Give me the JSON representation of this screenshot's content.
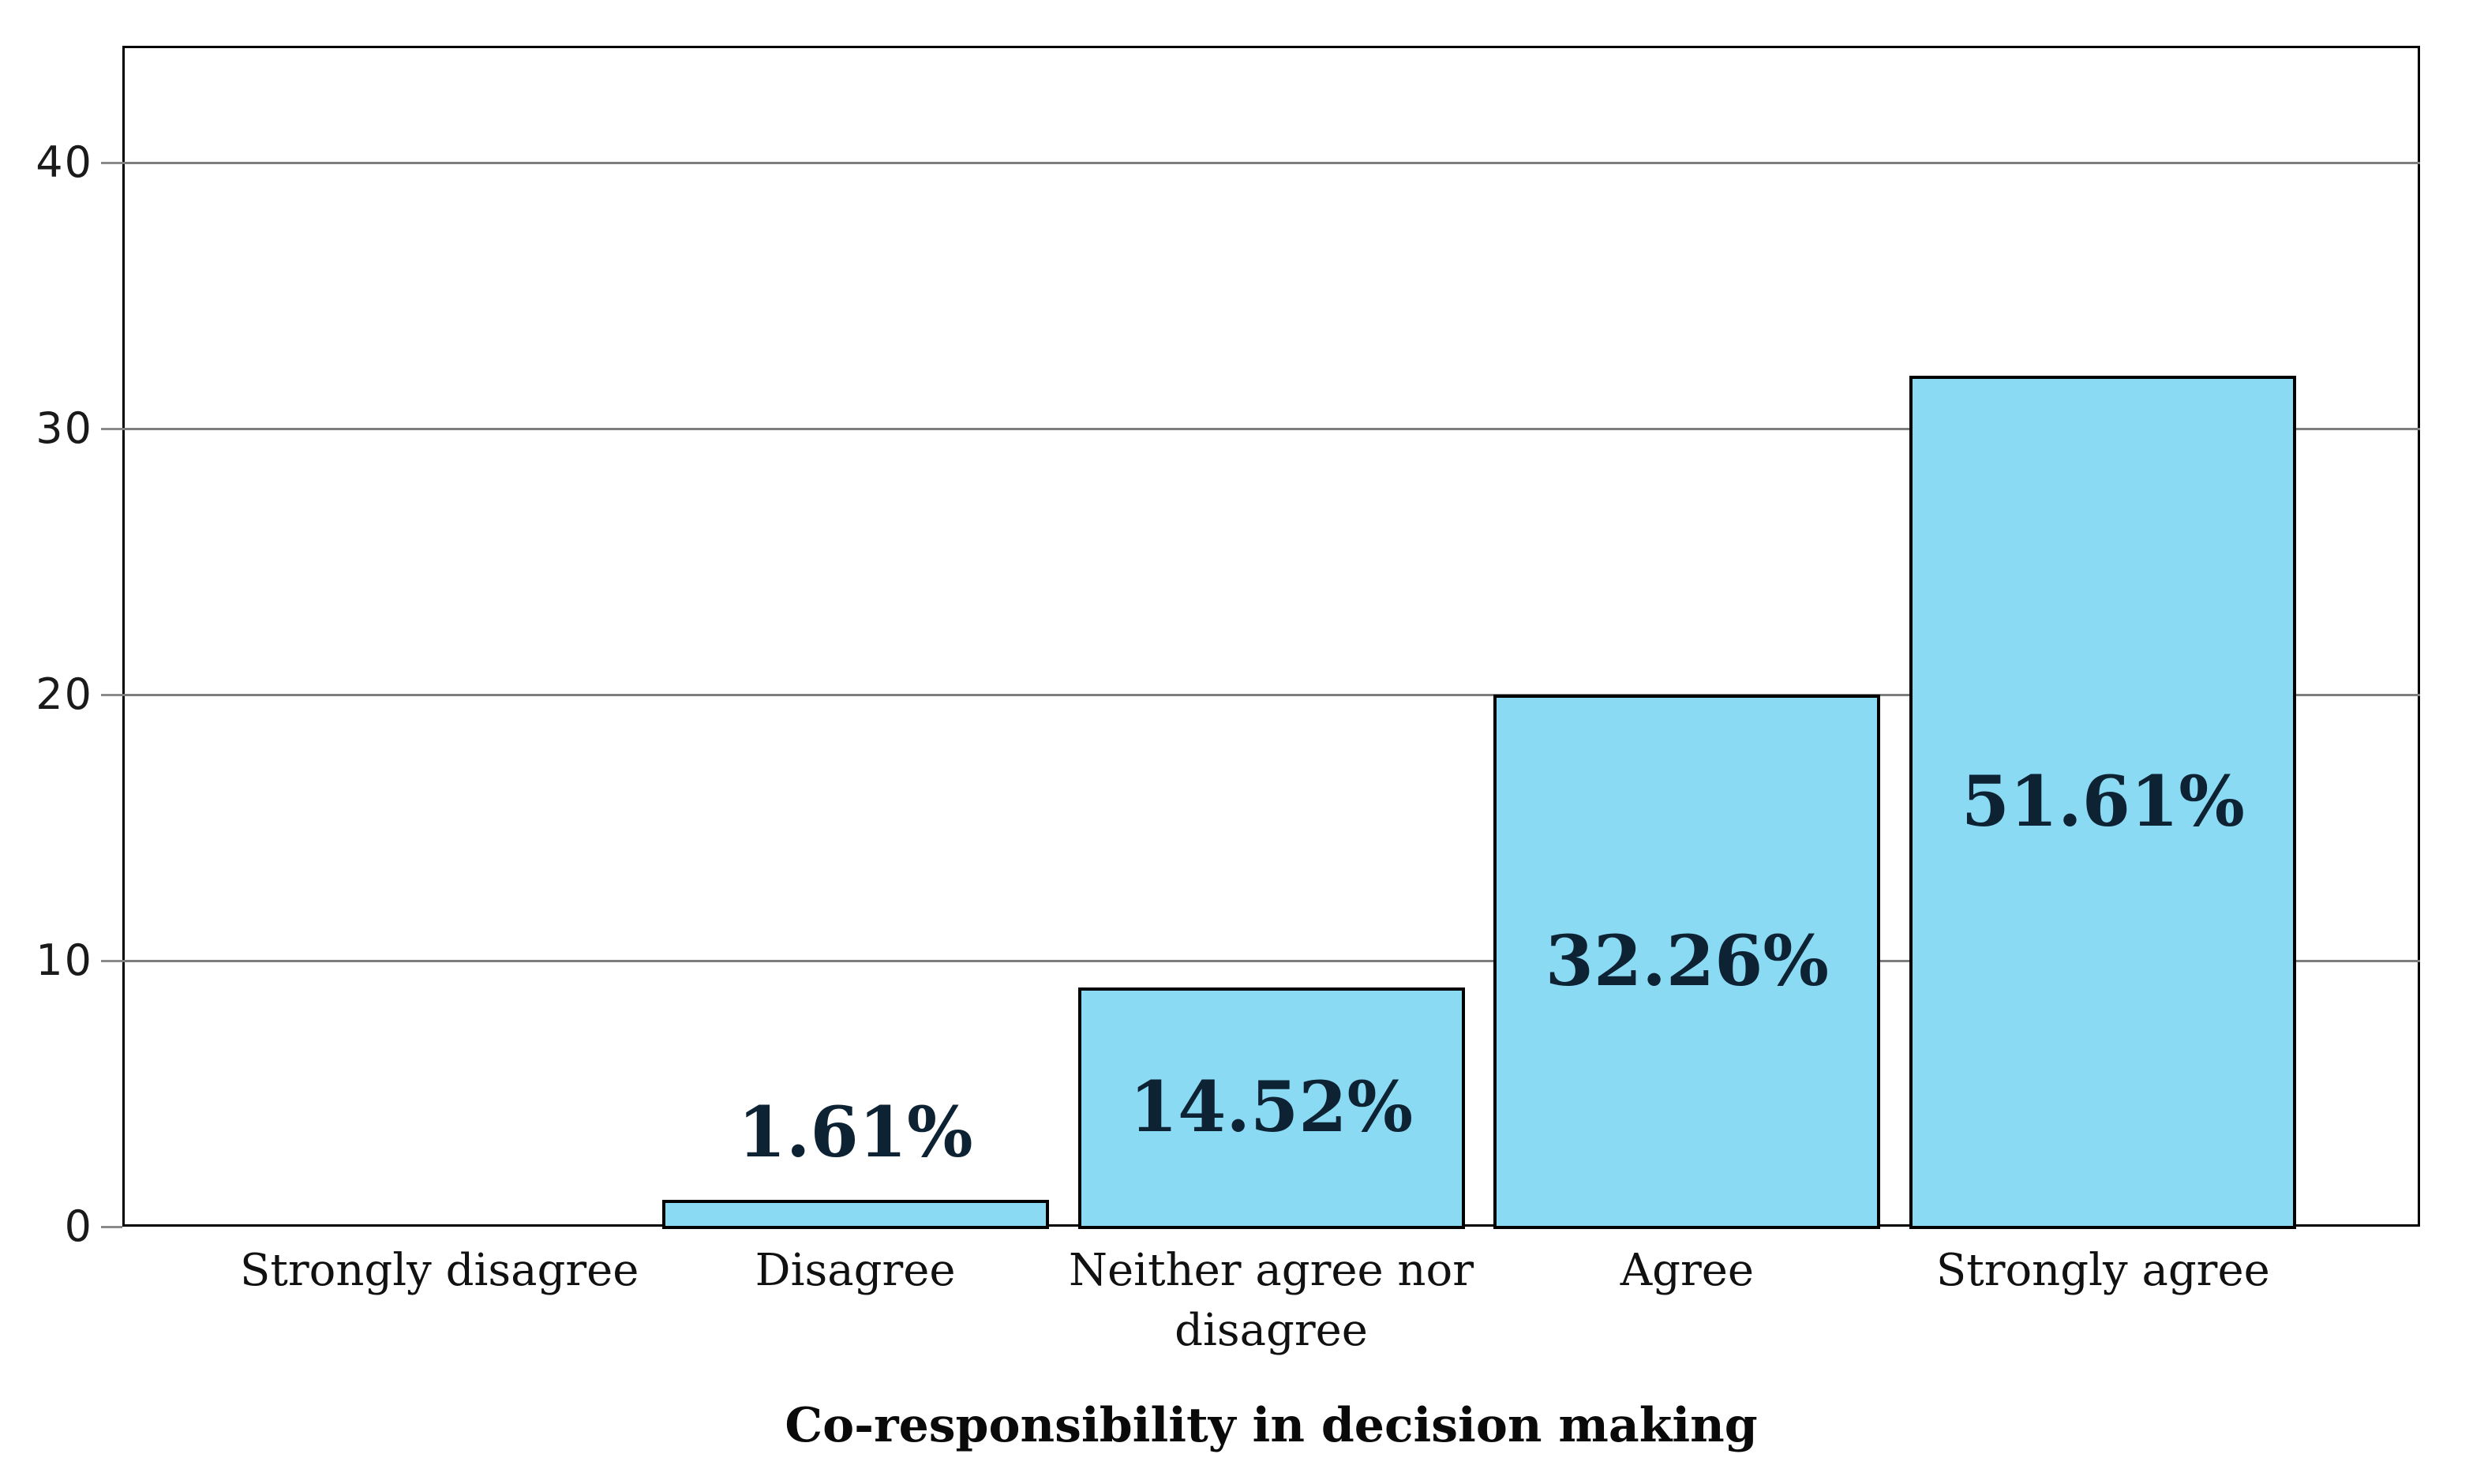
{
  "figure": {
    "background_color": "#ffffff",
    "description": "Survey response bar chart figure"
  },
  "chart_data": {
    "type": "bar",
    "title": "",
    "xlabel": "Co-responsibility in decision making",
    "ylabel": "",
    "categories": [
      "Strongly disagree",
      "Disagree",
      "Neither agree nor disagree",
      "Agree",
      "Strongly agree"
    ],
    "values": [
      0,
      1,
      9,
      20,
      32
    ],
    "bar_labels": [
      "",
      "1.61%",
      "14.52%",
      "32.26%",
      "51.61%"
    ],
    "y_ticks": [
      0,
      10,
      20,
      30,
      40
    ],
    "ylim": [
      0,
      44.4
    ],
    "grid": "horizontal-gridlines-on",
    "legend_position": "none",
    "colors": {
      "bar_fill": "#8bdaf3",
      "bar_border": "#000000",
      "gridline": "#7d7d7d",
      "frame": "#000000",
      "value_label_text": "#0d2233",
      "tick_label_text": "#1a1a1a"
    }
  }
}
